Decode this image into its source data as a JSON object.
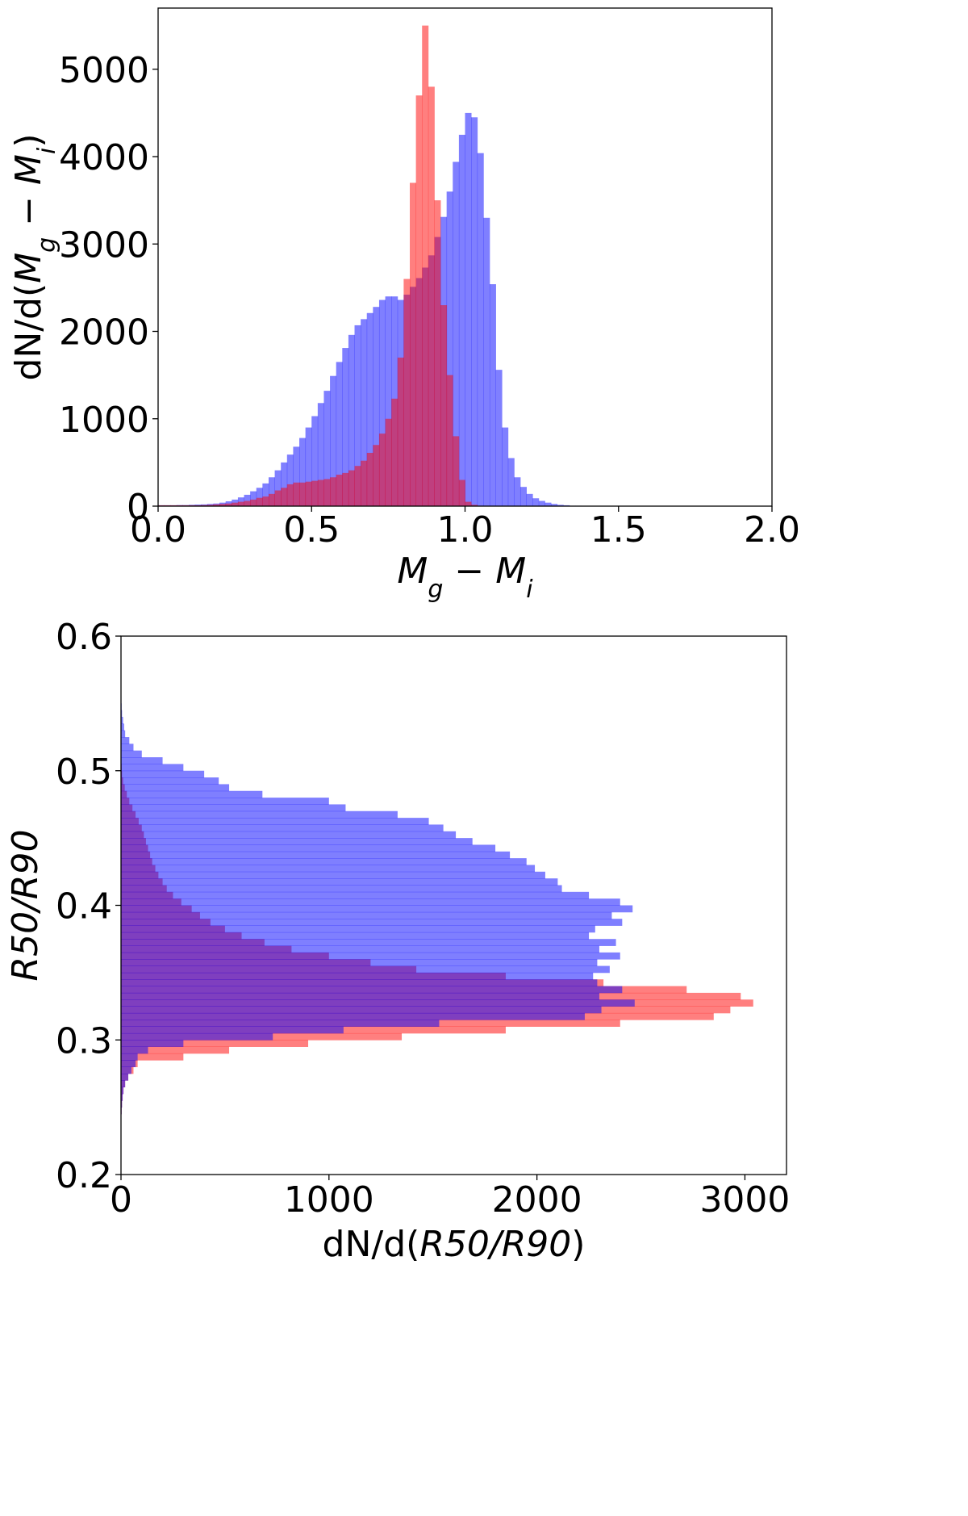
{
  "colors": {
    "red_series": "#ff0000",
    "blue_series": "#0000ff",
    "fill_opacity": 0.5,
    "axis": "#000000"
  },
  "chart_data": [
    {
      "type": "bar",
      "orientation": "vertical",
      "histogram": true,
      "xlabel_parts": [
        "M",
        "g",
        " − ",
        "M",
        "i"
      ],
      "ylabel_parts": [
        "dN/d(",
        "M",
        "g",
        " − ",
        "M",
        "i",
        ")"
      ],
      "xlim": [
        0.0,
        2.0
      ],
      "ylim": [
        0,
        5700
      ],
      "xticks": [
        0.0,
        0.5,
        1.0,
        1.5,
        2.0
      ],
      "xtick_labels": [
        "0.0",
        "0.5",
        "1.0",
        "1.5",
        "2.0"
      ],
      "yticks": [
        0,
        1000,
        2000,
        3000,
        4000,
        5000
      ],
      "ytick_labels": [
        "0",
        "1000",
        "2000",
        "3000",
        "4000",
        "5000"
      ],
      "grid": false,
      "bin_start": 0.0,
      "bin_width": 0.02,
      "series": [
        {
          "color": "#0000ff",
          "values": [
            10,
            10,
            10,
            12,
            12,
            15,
            18,
            20,
            25,
            30,
            40,
            55,
            75,
            100,
            130,
            170,
            210,
            260,
            330,
            410,
            500,
            590,
            680,
            780,
            900,
            1030,
            1180,
            1320,
            1490,
            1650,
            1810,
            1960,
            2070,
            2140,
            2210,
            2280,
            2360,
            2400,
            2400,
            2360,
            2420,
            2510,
            2610,
            2730,
            2870,
            3080,
            3310,
            3600,
            3940,
            4250,
            4500,
            4450,
            4040,
            3300,
            2540,
            1560,
            900,
            550,
            330,
            220,
            140,
            90,
            60,
            40,
            25,
            15,
            10,
            5,
            5,
            0,
            0,
            0,
            0,
            0,
            0,
            0,
            0,
            0,
            0,
            0,
            0,
            0,
            0,
            0,
            0,
            0,
            0,
            0,
            0,
            0,
            0,
            0,
            0,
            0,
            0,
            0,
            0,
            0,
            0,
            0
          ]
        },
        {
          "color": "#ff0000",
          "values": [
            10,
            10,
            10,
            10,
            10,
            10,
            10,
            12,
            15,
            20,
            25,
            30,
            40,
            50,
            60,
            75,
            95,
            110,
            140,
            180,
            210,
            250,
            270,
            270,
            280,
            290,
            300,
            310,
            330,
            360,
            380,
            410,
            460,
            520,
            610,
            700,
            830,
            1000,
            1230,
            1700,
            2600,
            3700,
            4700,
            5500,
            4800,
            3500,
            2300,
            1500,
            800,
            300,
            50,
            15,
            5,
            0,
            0,
            0,
            0,
            0,
            0,
            0,
            0,
            0,
            0,
            0,
            0,
            0,
            0,
            0,
            0,
            0,
            0,
            0,
            0,
            0,
            0,
            0,
            0,
            0,
            0,
            0,
            0,
            0,
            0,
            0,
            0,
            0,
            0,
            0,
            0,
            0,
            0,
            0,
            0,
            0,
            0,
            0,
            0,
            0,
            0,
            0
          ]
        }
      ]
    },
    {
      "type": "bar",
      "orientation": "horizontal",
      "histogram": true,
      "xlabel_parts": [
        "dN/d(",
        "R50/R90",
        ")"
      ],
      "ylabel_parts": [
        "R50/R90"
      ],
      "xlim": [
        0,
        3200
      ],
      "ylim": [
        0.2,
        0.6
      ],
      "xticks": [
        0,
        1000,
        2000,
        3000
      ],
      "xtick_labels": [
        "0",
        "1000",
        "2000",
        "3000"
      ],
      "yticks": [
        0.2,
        0.3,
        0.4,
        0.5,
        0.6
      ],
      "ytick_labels": [
        "0.2",
        "0.3",
        "0.4",
        "0.5",
        "0.6"
      ],
      "grid": false,
      "bin_start": 0.2,
      "bin_width": 0.005,
      "series": [
        {
          "color": "#ff0000",
          "values": [
            0,
            0,
            0,
            0,
            0,
            0,
            0,
            0,
            0,
            3,
            5,
            8,
            12,
            20,
            35,
            60,
            80,
            300,
            520,
            900,
            1350,
            1850,
            2400,
            2850,
            2930,
            3040,
            2980,
            2720,
            2320,
            1850,
            1420,
            1200,
            1000,
            820,
            690,
            580,
            500,
            430,
            380,
            340,
            290,
            250,
            220,
            200,
            180,
            165,
            150,
            140,
            130,
            120,
            110,
            100,
            85,
            70,
            55,
            40,
            28,
            18,
            10,
            5,
            3,
            2,
            1,
            0,
            0,
            0,
            0,
            0,
            0,
            0,
            0,
            0,
            0,
            0,
            0,
            0,
            0,
            0,
            0,
            0
          ]
        },
        {
          "color": "#0000ff",
          "values": [
            0,
            0,
            0,
            0,
            0,
            0,
            0,
            0,
            0,
            3,
            5,
            8,
            12,
            20,
            35,
            50,
            70,
            80,
            130,
            300,
            730,
            1070,
            1530,
            2230,
            2310,
            2470,
            2300,
            2410,
            2290,
            2270,
            2350,
            2290,
            2400,
            2300,
            2380,
            2250,
            2280,
            2410,
            2360,
            2460,
            2400,
            2250,
            2120,
            2100,
            2040,
            1990,
            1950,
            1870,
            1800,
            1690,
            1610,
            1550,
            1480,
            1330,
            1080,
            1000,
            680,
            520,
            470,
            400,
            300,
            200,
            100,
            60,
            40,
            20,
            15,
            10,
            5,
            3,
            2,
            1,
            0,
            0,
            0,
            0,
            0,
            0,
            0,
            0
          ]
        }
      ]
    }
  ]
}
